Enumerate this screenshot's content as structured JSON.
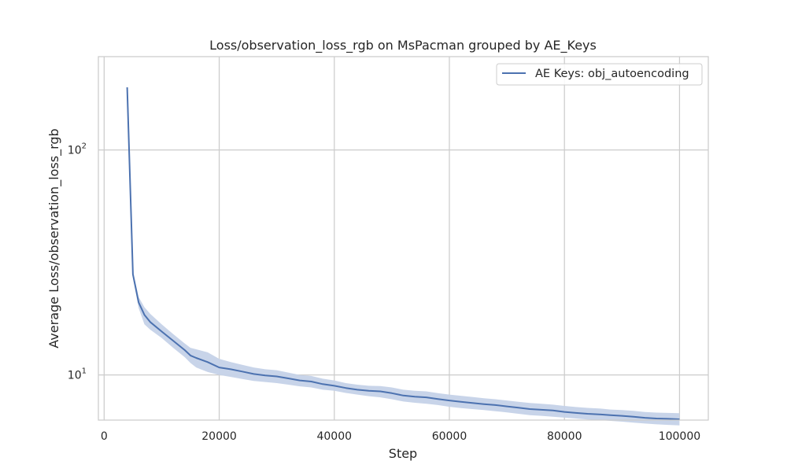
{
  "chart_data": {
    "type": "line",
    "title": "Loss/observation_loss_rgb on MsPacman grouped by AE_Keys",
    "xlabel": "Step",
    "ylabel": "Average Loss/observation_loss_rgb",
    "xlim": [
      -1000,
      105000
    ],
    "ylim": [
      6.3,
      260
    ],
    "yscale": "log",
    "grid": true,
    "legend_position": "top-right",
    "x_ticks": [
      0,
      20000,
      40000,
      60000,
      80000,
      100000
    ],
    "x_tick_labels": [
      "0",
      "20000",
      "40000",
      "60000",
      "80000",
      "100000"
    ],
    "y_ticks": [
      10,
      100
    ],
    "y_tick_labels": [
      {
        "base": "10",
        "exp": "1"
      },
      {
        "base": "10",
        "exp": "2"
      }
    ],
    "series": [
      {
        "name": "AE Keys: obj_autoencoding",
        "color": "#4c72b0",
        "band_color": "#c5d2e8",
        "x": [
          4000,
          5000,
          6000,
          7000,
          8000,
          10000,
          12000,
          14000,
          15000,
          16000,
          18000,
          20000,
          22000,
          24000,
          26000,
          28000,
          30000,
          32000,
          34000,
          36000,
          38000,
          40000,
          42000,
          44000,
          46000,
          48000,
          50000,
          52000,
          54000,
          56000,
          58000,
          60000,
          62000,
          64000,
          66000,
          68000,
          70000,
          72000,
          74000,
          76000,
          78000,
          80000,
          82000,
          84000,
          86000,
          88000,
          90000,
          92000,
          94000,
          96000,
          98000,
          100000
        ],
        "y": [
          190,
          28,
          21,
          18.5,
          17.2,
          15.6,
          14.2,
          12.9,
          12.2,
          11.9,
          11.4,
          10.8,
          10.6,
          10.35,
          10.1,
          9.95,
          9.85,
          9.65,
          9.45,
          9.35,
          9.1,
          8.95,
          8.75,
          8.6,
          8.5,
          8.45,
          8.3,
          8.1,
          8.0,
          7.95,
          7.82,
          7.7,
          7.6,
          7.5,
          7.42,
          7.35,
          7.25,
          7.15,
          7.05,
          7.0,
          6.95,
          6.85,
          6.78,
          6.72,
          6.68,
          6.62,
          6.58,
          6.52,
          6.45,
          6.4,
          6.38,
          6.35
        ],
        "lower": [
          190,
          27,
          19.8,
          16.8,
          15.9,
          14.6,
          13.2,
          12.0,
          11.3,
          10.8,
          10.3,
          10.0,
          9.8,
          9.6,
          9.4,
          9.3,
          9.2,
          9.05,
          8.9,
          8.8,
          8.6,
          8.5,
          8.32,
          8.18,
          8.05,
          7.95,
          7.8,
          7.62,
          7.52,
          7.45,
          7.35,
          7.22,
          7.12,
          7.05,
          6.98,
          6.9,
          6.82,
          6.72,
          6.62,
          6.58,
          6.52,
          6.46,
          6.4,
          6.34,
          6.3,
          6.25,
          6.2,
          6.14,
          6.08,
          6.03,
          6.0,
          5.97
        ],
        "upper": [
          190,
          29,
          22.2,
          20.0,
          18.7,
          16.8,
          15.2,
          13.8,
          13.2,
          13.0,
          12.6,
          11.8,
          11.4,
          11.1,
          10.8,
          10.6,
          10.5,
          10.25,
          10.0,
          9.9,
          9.62,
          9.45,
          9.2,
          9.05,
          8.95,
          8.92,
          8.8,
          8.6,
          8.5,
          8.45,
          8.3,
          8.18,
          8.08,
          7.98,
          7.88,
          7.8,
          7.7,
          7.6,
          7.5,
          7.44,
          7.38,
          7.28,
          7.2,
          7.14,
          7.1,
          7.02,
          6.98,
          6.92,
          6.84,
          6.8,
          6.78,
          6.76
        ]
      }
    ]
  }
}
